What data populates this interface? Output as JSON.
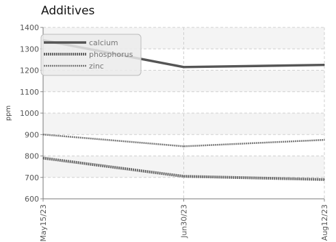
{
  "chart_data": {
    "type": "line",
    "title": "Additives",
    "xlabel": "",
    "ylabel": "ppm",
    "categories": [
      "May15/23",
      "Jun30/23",
      "Aug12/23"
    ],
    "ylim": [
      600,
      1400
    ],
    "yticks": [
      600,
      700,
      800,
      900,
      1000,
      1100,
      1200,
      1300,
      1400
    ],
    "grid": true,
    "legend_position": "top-left",
    "series": [
      {
        "name": "calcium",
        "values": [
          1340,
          1215,
          1225
        ],
        "color": "#555555",
        "style": "solid"
      },
      {
        "name": "phosphorus",
        "values": [
          790,
          705,
          690
        ],
        "color": "#666666",
        "style": "dotted-heavy"
      },
      {
        "name": "zinc",
        "values": [
          900,
          845,
          875
        ],
        "color": "#777777",
        "style": "dotted"
      }
    ]
  }
}
